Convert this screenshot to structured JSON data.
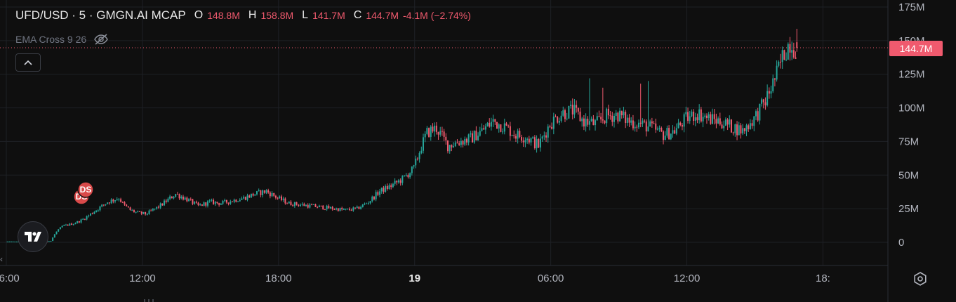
{
  "legend": {
    "symbol": "UFD/USD · 5 · GMGN.AI MCAP",
    "o_key": "O",
    "o_val": "148.8M",
    "h_key": "H",
    "h_val": "158.8M",
    "l_key": "L",
    "l_val": "141.7M",
    "c_key": "C",
    "c_val": "144.7M",
    "change": "-4.1M (−2.74%)"
  },
  "indicator": {
    "label": "EMA Cross 9 26",
    "hidden_icon": "eye-off-icon"
  },
  "current_price_label": "144.7M",
  "markers": [
    "DS",
    "DS"
  ],
  "icons": {
    "collapse": "chevron-up-icon",
    "logo": "tradingview-logo-icon",
    "settings": "gear-icon",
    "scroll_left": "chevron-left-icon"
  },
  "colors": {
    "up": "#26a69a",
    "down": "#f05a6e",
    "background": "#0f0f0f",
    "grid": "#1e2025",
    "marker": "#d94a4a"
  },
  "chart_data": {
    "type": "candlestick",
    "y_unit": "M",
    "y_ticks": [
      0,
      25,
      50,
      75,
      100,
      125,
      150,
      175
    ],
    "y_tick_labels": [
      "0",
      "25M",
      "50M",
      "75M",
      "100M",
      "125M",
      "150M",
      "175M"
    ],
    "ylim": [
      -12,
      180
    ],
    "x_ticks": [
      "06:00",
      "12:00",
      "18:00",
      "19",
      "06:00",
      "12:00",
      "18:"
    ],
    "x_tick_hours": [
      6,
      12,
      18,
      24,
      30,
      36,
      42
    ],
    "xlim_hours": [
      6,
      44.4
    ],
    "current_price": 144.7,
    "grid": true,
    "anchors": [
      [
        6.0,
        0.5
      ],
      [
        7.5,
        0.5
      ],
      [
        8.0,
        1
      ],
      [
        8.2,
        7
      ],
      [
        8.5,
        12
      ],
      [
        9.0,
        14
      ],
      [
        9.3,
        16
      ],
      [
        9.5,
        18
      ],
      [
        10.0,
        24
      ],
      [
        10.5,
        30
      ],
      [
        11.0,
        33
      ],
      [
        11.2,
        28
      ],
      [
        11.5,
        24
      ],
      [
        11.8,
        22
      ],
      [
        12.2,
        21
      ],
      [
        12.8,
        27
      ],
      [
        13.5,
        36
      ],
      [
        14.0,
        32
      ],
      [
        14.5,
        27
      ],
      [
        15.0,
        30
      ],
      [
        15.5,
        29
      ],
      [
        16.0,
        31
      ],
      [
        16.5,
        33
      ],
      [
        17.0,
        36
      ],
      [
        17.5,
        38
      ],
      [
        18.0,
        33
      ],
      [
        18.5,
        29
      ],
      [
        19.0,
        28
      ],
      [
        20.0,
        26
      ],
      [
        21.0,
        24
      ],
      [
        21.5,
        25
      ],
      [
        22.0,
        30
      ],
      [
        22.5,
        38
      ],
      [
        23.0,
        42
      ],
      [
        23.5,
        47
      ],
      [
        24.0,
        55
      ],
      [
        24.3,
        70
      ],
      [
        24.6,
        82
      ],
      [
        25.0,
        85
      ],
      [
        25.5,
        72
      ],
      [
        26.0,
        75
      ],
      [
        26.5,
        77
      ],
      [
        27.0,
        83
      ],
      [
        27.5,
        90
      ],
      [
        28.0,
        86
      ],
      [
        28.5,
        80
      ],
      [
        29.0,
        78
      ],
      [
        29.5,
        72
      ],
      [
        30.0,
        88
      ],
      [
        30.5,
        96
      ],
      [
        31.0,
        98
      ],
      [
        31.5,
        90
      ],
      [
        32.0,
        88
      ],
      [
        32.5,
        94
      ],
      [
        33.0,
        95
      ],
      [
        33.5,
        90
      ],
      [
        34.0,
        88
      ],
      [
        34.5,
        85
      ],
      [
        35.0,
        80
      ],
      [
        35.5,
        83
      ],
      [
        36.0,
        92
      ],
      [
        36.5,
        96
      ],
      [
        37.0,
        92
      ],
      [
        37.5,
        90
      ],
      [
        38.0,
        86
      ],
      [
        38.5,
        83
      ],
      [
        39.0,
        92
      ],
      [
        39.5,
        105
      ],
      [
        40.0,
        125
      ],
      [
        40.3,
        140
      ],
      [
        40.6,
        150
      ],
      [
        40.75,
        145.5
      ],
      [
        40.85,
        144.7
      ]
    ],
    "spikes": [
      [
        31.65,
        122
      ],
      [
        32.25,
        115
      ],
      [
        33.9,
        118
      ],
      [
        34.25,
        120
      ]
    ],
    "last_candle": {
      "time_hours": 40.85,
      "open": 148.8,
      "high": 158.8,
      "low": 141.7,
      "close": 144.7
    }
  }
}
